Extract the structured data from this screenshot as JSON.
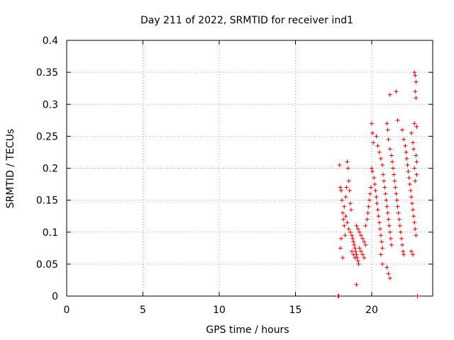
{
  "chart_data": {
    "type": "scatter",
    "title": "Day 211 of 2022, SRMTID for receiver ind1",
    "xlabel": "GPS time / hours",
    "ylabel": "SRMTID / TECUs",
    "xlim": [
      0,
      24
    ],
    "ylim": [
      0,
      0.4
    ],
    "xticks": [
      0,
      5,
      10,
      15,
      20
    ],
    "xtick_labels": [
      "0",
      "5",
      "10",
      "15",
      "20"
    ],
    "yticks": [
      0,
      0.05,
      0.1,
      0.15,
      0.2,
      0.25,
      0.3,
      0.35,
      0.4
    ],
    "ytick_labels": [
      "0",
      "0.05",
      "0.1",
      "0.15",
      "0.2",
      "0.25",
      "0.3",
      "0.35",
      "0.4"
    ],
    "grid": true,
    "marker": "+",
    "color": "#e00000",
    "series": [
      {
        "name": "ind1",
        "points": [
          [
            17.8,
            0.0
          ],
          [
            17.82,
            0.0
          ],
          [
            17.85,
            0.0
          ],
          [
            23.0,
            0.0
          ],
          [
            17.9,
            0.205
          ],
          [
            17.95,
            0.17
          ],
          [
            18.0,
            0.165
          ],
          [
            18.05,
            0.15
          ],
          [
            18.1,
            0.13
          ],
          [
            18.15,
            0.12
          ],
          [
            18.2,
            0.11
          ],
          [
            18.25,
            0.095
          ],
          [
            18.0,
            0.09
          ],
          [
            17.95,
            0.075
          ],
          [
            18.1,
            0.06
          ],
          [
            18.2,
            0.14
          ],
          [
            18.3,
            0.155
          ],
          [
            18.35,
            0.17
          ],
          [
            18.4,
            0.21
          ],
          [
            18.45,
            0.2
          ],
          [
            18.5,
            0.18
          ],
          [
            18.55,
            0.165
          ],
          [
            18.6,
            0.145
          ],
          [
            18.65,
            0.135
          ],
          [
            18.3,
            0.125
          ],
          [
            18.4,
            0.115
          ],
          [
            18.5,
            0.105
          ],
          [
            18.6,
            0.1
          ],
          [
            18.7,
            0.095
          ],
          [
            18.75,
            0.09
          ],
          [
            18.8,
            0.085
          ],
          [
            18.85,
            0.08
          ],
          [
            18.9,
            0.075
          ],
          [
            18.95,
            0.07
          ],
          [
            19.0,
            0.065
          ],
          [
            19.05,
            0.06
          ],
          [
            19.1,
            0.055
          ],
          [
            19.15,
            0.05
          ],
          [
            18.7,
            0.07
          ],
          [
            18.8,
            0.065
          ],
          [
            18.9,
            0.06
          ],
          [
            19.0,
            0.11
          ],
          [
            19.1,
            0.105
          ],
          [
            19.2,
            0.1
          ],
          [
            19.3,
            0.095
          ],
          [
            19.4,
            0.09
          ],
          [
            19.5,
            0.085
          ],
          [
            19.6,
            0.08
          ],
          [
            19.2,
            0.075
          ],
          [
            19.3,
            0.07
          ],
          [
            19.4,
            0.065
          ],
          [
            19.5,
            0.06
          ],
          [
            19.0,
            0.018
          ],
          [
            19.6,
            0.11
          ],
          [
            19.7,
            0.12
          ],
          [
            19.75,
            0.13
          ],
          [
            19.8,
            0.14
          ],
          [
            19.85,
            0.15
          ],
          [
            19.9,
            0.16
          ],
          [
            19.95,
            0.17
          ],
          [
            20.0,
            0.27
          ],
          [
            20.05,
            0.255
          ],
          [
            20.1,
            0.24
          ],
          [
            20.0,
            0.2
          ],
          [
            20.05,
            0.195
          ],
          [
            20.15,
            0.185
          ],
          [
            20.2,
            0.175
          ],
          [
            20.25,
            0.165
          ],
          [
            20.3,
            0.155
          ],
          [
            20.35,
            0.145
          ],
          [
            20.4,
            0.135
          ],
          [
            20.45,
            0.125
          ],
          [
            20.5,
            0.115
          ],
          [
            20.55,
            0.105
          ],
          [
            20.6,
            0.095
          ],
          [
            20.65,
            0.085
          ],
          [
            20.7,
            0.075
          ],
          [
            20.3,
            0.25
          ],
          [
            20.4,
            0.235
          ],
          [
            20.5,
            0.225
          ],
          [
            20.6,
            0.215
          ],
          [
            20.7,
            0.205
          ],
          [
            20.75,
            0.19
          ],
          [
            20.8,
            0.18
          ],
          [
            20.85,
            0.17
          ],
          [
            20.9,
            0.16
          ],
          [
            20.95,
            0.15
          ],
          [
            21.0,
            0.14
          ],
          [
            21.05,
            0.13
          ],
          [
            21.1,
            0.12
          ],
          [
            21.15,
            0.11
          ],
          [
            21.2,
            0.1
          ],
          [
            21.25,
            0.09
          ],
          [
            21.3,
            0.08
          ],
          [
            20.6,
            0.065
          ],
          [
            20.7,
            0.05
          ],
          [
            21.0,
            0.045
          ],
          [
            21.1,
            0.035
          ],
          [
            21.2,
            0.028
          ],
          [
            21.0,
            0.27
          ],
          [
            21.05,
            0.26
          ],
          [
            21.1,
            0.245
          ],
          [
            21.2,
            0.23
          ],
          [
            21.3,
            0.22
          ],
          [
            21.35,
            0.21
          ],
          [
            21.4,
            0.2
          ],
          [
            21.45,
            0.19
          ],
          [
            21.5,
            0.18
          ],
          [
            21.55,
            0.17
          ],
          [
            21.6,
            0.16
          ],
          [
            21.65,
            0.15
          ],
          [
            21.7,
            0.14
          ],
          [
            21.75,
            0.13
          ],
          [
            21.8,
            0.12
          ],
          [
            21.85,
            0.11
          ],
          [
            21.9,
            0.1
          ],
          [
            21.95,
            0.09
          ],
          [
            22.0,
            0.08
          ],
          [
            22.05,
            0.07
          ],
          [
            22.1,
            0.065
          ],
          [
            21.2,
            0.315
          ],
          [
            21.6,
            0.32
          ],
          [
            21.7,
            0.275
          ],
          [
            22.0,
            0.26
          ],
          [
            22.1,
            0.245
          ],
          [
            22.2,
            0.235
          ],
          [
            22.25,
            0.225
          ],
          [
            22.3,
            0.215
          ],
          [
            22.35,
            0.205
          ],
          [
            22.4,
            0.195
          ],
          [
            22.45,
            0.185
          ],
          [
            22.5,
            0.175
          ],
          [
            22.55,
            0.165
          ],
          [
            22.6,
            0.155
          ],
          [
            22.65,
            0.145
          ],
          [
            22.7,
            0.135
          ],
          [
            22.75,
            0.125
          ],
          [
            22.8,
            0.115
          ],
          [
            22.85,
            0.105
          ],
          [
            22.9,
            0.095
          ],
          [
            22.6,
            0.07
          ],
          [
            22.7,
            0.065
          ],
          [
            22.8,
            0.35
          ],
          [
            22.85,
            0.345
          ],
          [
            22.9,
            0.335
          ],
          [
            22.85,
            0.32
          ],
          [
            22.9,
            0.31
          ],
          [
            22.8,
            0.27
          ],
          [
            22.95,
            0.265
          ],
          [
            22.6,
            0.255
          ],
          [
            22.7,
            0.24
          ],
          [
            22.75,
            0.23
          ],
          [
            22.9,
            0.22
          ],
          [
            22.95,
            0.21
          ],
          [
            22.8,
            0.2
          ],
          [
            22.95,
            0.19
          ],
          [
            22.85,
            0.18
          ]
        ]
      }
    ]
  }
}
